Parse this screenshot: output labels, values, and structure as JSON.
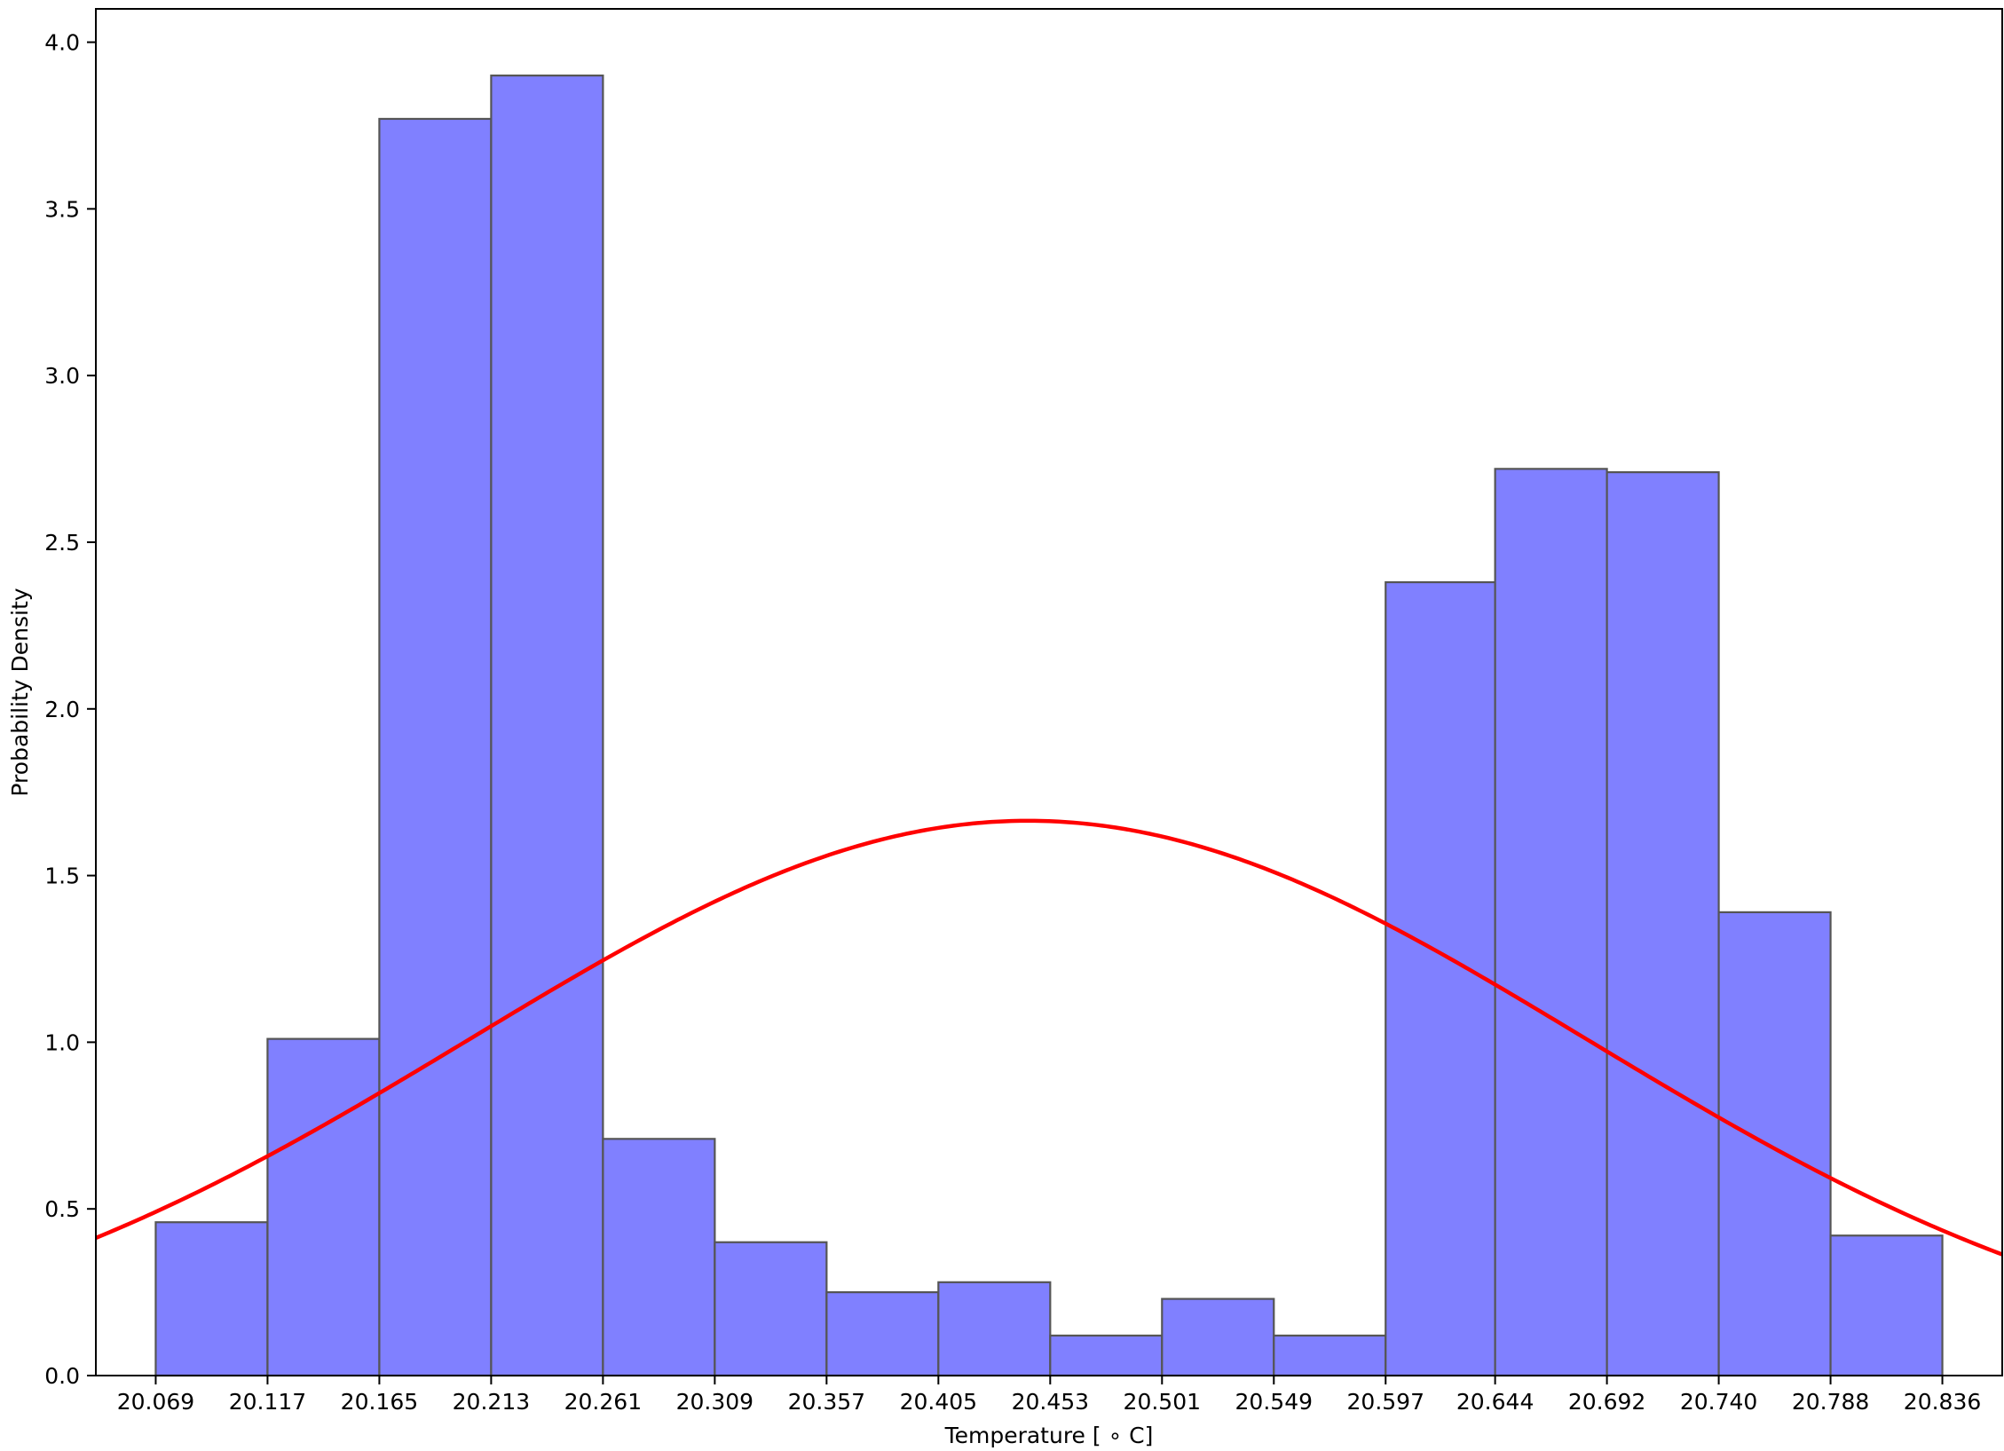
{
  "chart_data": {
    "type": "bar",
    "xlabel": "Temperature [$^\\circ$C]",
    "xlabel_display": "Temperature [ ∘ C]",
    "ylabel": "Probability Density",
    "x_ticks": [
      "20.069",
      "20.117",
      "20.165",
      "20.213",
      "20.261",
      "20.309",
      "20.357",
      "20.405",
      "20.453",
      "20.501",
      "20.549",
      "20.597",
      "20.644",
      "20.692",
      "20.740",
      "20.788",
      "20.836"
    ],
    "y_ticks": [
      "0.0",
      "0.5",
      "1.0",
      "1.5",
      "2.0",
      "2.5",
      "3.0",
      "3.5",
      "4.0"
    ],
    "bin_edges": [
      20.069,
      20.117,
      20.165,
      20.213,
      20.261,
      20.309,
      20.357,
      20.405,
      20.453,
      20.501,
      20.549,
      20.597,
      20.644,
      20.692,
      20.74,
      20.788,
      20.836
    ],
    "values": [
      0.46,
      1.01,
      3.77,
      3.9,
      0.71,
      0.4,
      0.25,
      0.28,
      0.12,
      0.23,
      0.12,
      2.38,
      2.72,
      2.71,
      1.39,
      0.42
    ],
    "xlim": [
      20.0433,
      20.8617
    ],
    "ylim": [
      0,
      4.1
    ],
    "fit_curve": {
      "type": "normal-pdf",
      "mean": 20.4435,
      "std": 0.2397
    },
    "grid": false,
    "colors": {
      "bar_fill": "#8080ff",
      "bar_edge": "#555555",
      "curve": "#ff0000",
      "axis": "#000000"
    }
  }
}
